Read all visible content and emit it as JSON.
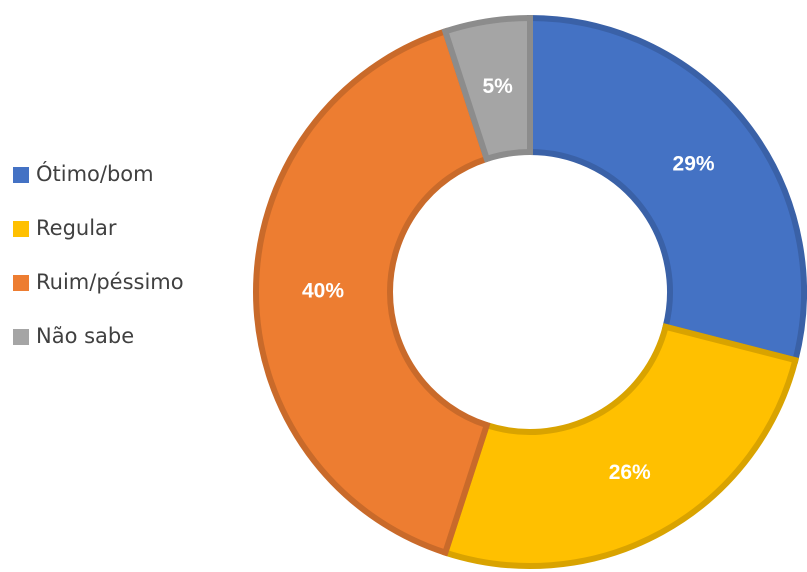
{
  "chart_data": {
    "type": "donut",
    "categories": [
      "Ótimo/bom",
      "Regular",
      "Ruim/péssimo",
      "Não sabe"
    ],
    "values": [
      29,
      26,
      40,
      5
    ],
    "value_labels": [
      "29%",
      "26%",
      "40%",
      "5%"
    ],
    "colors": [
      "#4472c4",
      "#ffc000",
      "#ed7d31",
      "#a5a5a5"
    ],
    "legend": "left"
  }
}
